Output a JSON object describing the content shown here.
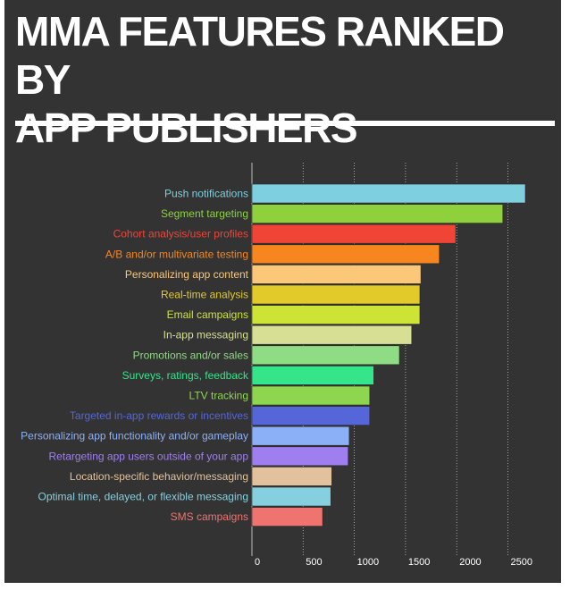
{
  "title_line1": "MMA FEATURES RANKED BY",
  "title_line2": "APP PUBLISHERS",
  "chart_data": {
    "type": "bar",
    "orientation": "horizontal",
    "title": "MMA FEATURES RANKED BY APP PUBLISHERS",
    "xlim": [
      0,
      2700
    ],
    "xticks": [
      0,
      500,
      1000,
      1500,
      2000,
      2500
    ],
    "grid": true,
    "categories": [
      "Push notifications",
      "Segment targeting",
      "Cohort analysis/user profiles",
      "A/B and/or multivariate testing",
      "Personalizing app content",
      "Real-time analysis",
      "Email campaigns",
      "In-app messaging",
      "Promotions and/or sales",
      "Surveys, ratings, feedback",
      "LTV tracking",
      "Targeted in-app rewards or incentives",
      "Personalizing app functionality and/or gameplay",
      "Retargeting app users outside of your app",
      "Location-specific behavior/messaging",
      "Optimal time, delayed, or flexible messaging",
      "SMS campaigns"
    ],
    "values": [
      2670,
      2450,
      1990,
      1830,
      1650,
      1640,
      1640,
      1560,
      1440,
      1190,
      1150,
      1150,
      950,
      940,
      780,
      770,
      690
    ],
    "colors": [
      "#7ecfdf",
      "#8ed13c",
      "#f04437",
      "#f7861e",
      "#fbc87a",
      "#e3ca2b",
      "#cde336",
      "#d6df93",
      "#8edc83",
      "#35e58a",
      "#8ed64e",
      "#5567d8",
      "#8cb0f7",
      "#9f7ff0",
      "#e2c29d",
      "#86cfde",
      "#ef7470"
    ]
  }
}
